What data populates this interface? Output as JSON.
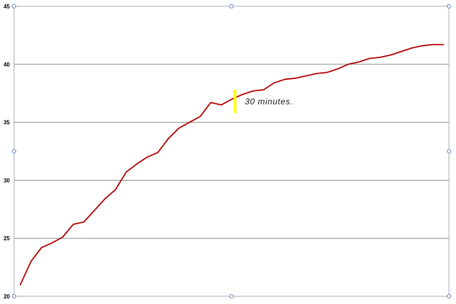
{
  "chart_data": {
    "type": "line",
    "title": "",
    "xlabel": "",
    "ylabel": "",
    "ylim": [
      20,
      45
    ],
    "yticks": [
      "20",
      "25",
      "30",
      "35",
      "40",
      "45"
    ],
    "grid": true,
    "series": [
      {
        "color": "#b00000",
        "x": [
          0,
          1,
          2,
          3,
          4,
          5,
          6,
          7,
          8,
          9,
          10,
          11,
          12,
          13,
          14,
          15,
          16,
          17,
          18,
          19,
          20,
          21,
          22,
          23,
          24,
          25,
          26,
          27,
          28,
          29,
          30,
          31,
          32,
          33,
          34,
          35,
          36,
          37,
          38,
          39,
          40
        ],
        "values": [
          21.0,
          23.0,
          24.2,
          24.6,
          25.1,
          26.2,
          26.4,
          27.4,
          28.4,
          29.2,
          30.7,
          31.4,
          32.0,
          32.4,
          33.6,
          34.5,
          35.0,
          35.5,
          36.7,
          36.5,
          37.0,
          37.4,
          37.7,
          37.8,
          38.4,
          38.7,
          38.8,
          39.0,
          39.2,
          39.3,
          39.6,
          40.0,
          40.2,
          40.5,
          40.6,
          40.8,
          41.1,
          41.4,
          41.6,
          41.7,
          41.7
        ]
      }
    ],
    "annotation": {
      "text": "30 minutes.",
      "x": 20.3,
      "y_range": [
        35.8,
        37.8
      ],
      "color": "#ffff00"
    },
    "handle_color": "#6a8cbf",
    "frame_color": "#a7abb2",
    "grid_color": "#8a8a8a"
  }
}
